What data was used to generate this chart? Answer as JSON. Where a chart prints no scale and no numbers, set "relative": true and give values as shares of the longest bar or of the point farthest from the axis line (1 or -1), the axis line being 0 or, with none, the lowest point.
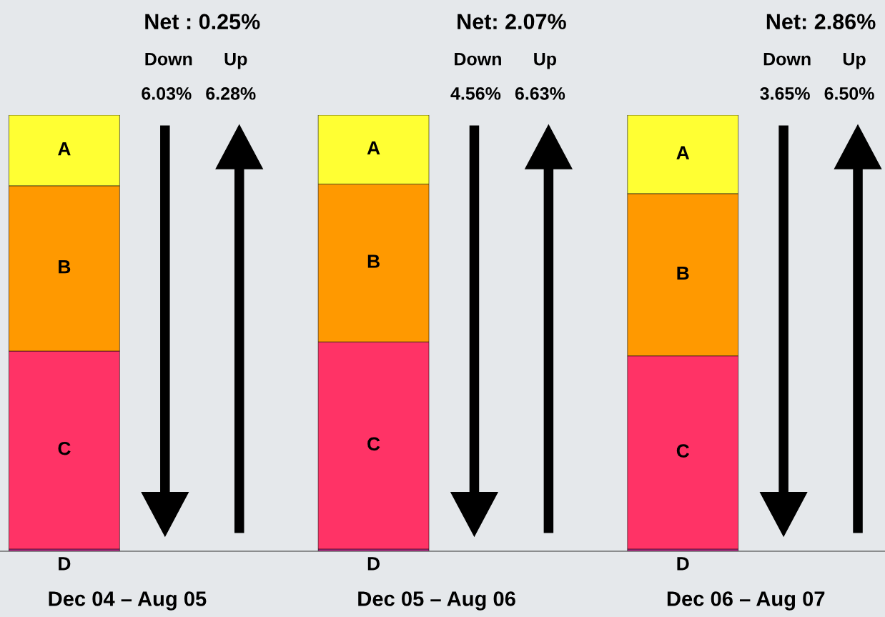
{
  "chart_data": {
    "type": "bar",
    "stacked": true,
    "relative": true,
    "categories": [
      "Dec 04 – Aug 05",
      "Dec 05 – Aug 06",
      "Dec 06 – Aug 07"
    ],
    "series": [
      {
        "name": "D",
        "color": "#cc3399",
        "values": [
          0.005,
          0.005,
          0.005
        ]
      },
      {
        "name": "C",
        "color": "#ff3366",
        "values": [
          0.454,
          0.475,
          0.443
        ]
      },
      {
        "name": "B",
        "color": "#ff9900",
        "values": [
          0.379,
          0.362,
          0.372
        ]
      },
      {
        "name": "A",
        "color": "#ffff33",
        "values": [
          0.162,
          0.158,
          0.18
        ]
      }
    ],
    "annotations": [
      "Net : 0.25%",
      "Down",
      "Up",
      "6.03%",
      "6.28%",
      "Net: 2.07%",
      "Down",
      "Up",
      "4.56%",
      "6.63%",
      "Net: 2.86%",
      "Down",
      "Up",
      "3.65%",
      "6.50%"
    ]
  }
}
